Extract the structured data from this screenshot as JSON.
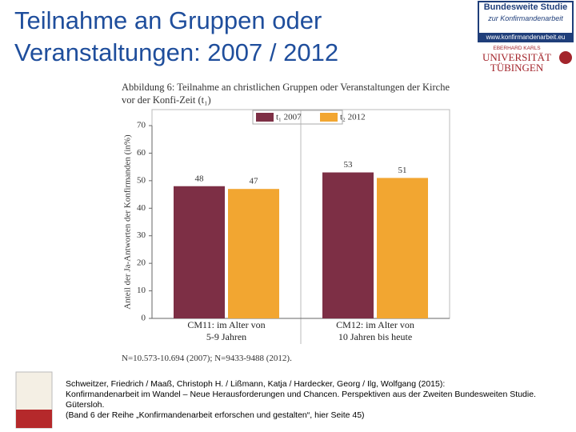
{
  "slide": {
    "title": "Teilnahme an Gruppen oder Veranstaltungen: 2007 / 2012",
    "logo_study": [
      "Bundesweite Studie",
      "zur Konfirmandenarbeit",
      "www.konfirmandenarbeit.eu"
    ],
    "logo_university": [
      "EBERHARD KARLS",
      "UNIVERSITÄT",
      "TÜBINGEN"
    ],
    "citation": [
      "Schweitzer, Friedrich / Maaß, Christoph H. / Lißmann, Katja / Hardecker, Georg / Ilg, Wolfgang (2015):",
      "Konfirmandenarbeit im Wandel – Neue Herausforderungen und Chancen. Perspektiven aus der Zweiten Bundesweiten Studie.",
      "Gütersloh.",
      "(Band 6 der Reihe „Konfirmandenarbeit erforschen und gestalten“, hier Seite 45)"
    ]
  },
  "chart_data": {
    "type": "bar",
    "title": "Abbildung 6: Teilnahme an christlichen Gruppen oder Veranstaltungen der Kirche vor der Konfi-Zeit (t₁)",
    "y_label": "Anteil der Ja-Antworten der Konfirmanden (in%)",
    "note": "N=10.573-10.694 (2007); N=9433-9488 (2012).",
    "categories": [
      "CM11: im Alter von\n5-9 Jahren",
      "CM12: im Alter von\n10 Jahren bis heute"
    ],
    "series": [
      {
        "name": "t₁ 2007",
        "color": "#7d2f45",
        "values": [
          48,
          53
        ]
      },
      {
        "name": "t₂ 2012",
        "color": "#f2a631",
        "values": [
          47,
          51
        ]
      }
    ],
    "ylim": [
      0,
      70
    ],
    "yticks": [
      0,
      10,
      20,
      30,
      40,
      50,
      60,
      70
    ],
    "grid": false,
    "legend": "top"
  }
}
